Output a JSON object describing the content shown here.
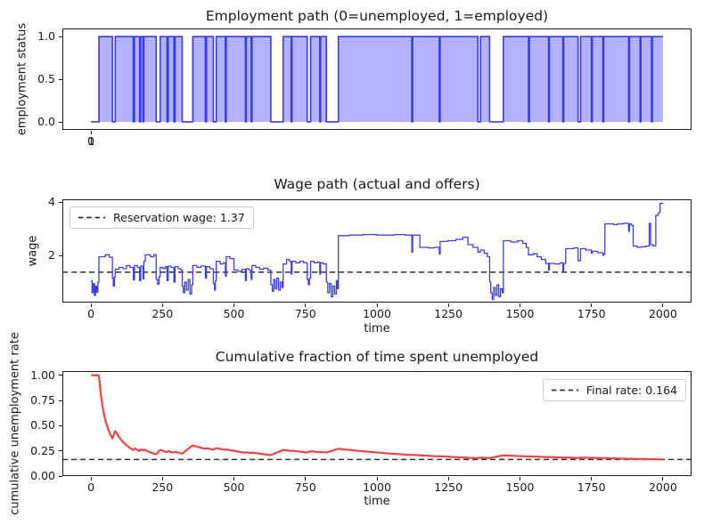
{
  "figure": {
    "background": "#ffffff",
    "text_color": "#1a1a1a",
    "spine_color": "#1a1a1a"
  },
  "chart_data": [
    {
      "id": "employment_path",
      "type": "area",
      "title": "Employment path (0=unemployed, 1=employed)",
      "ylabel": "employment status",
      "xlim": [
        -100,
        2100
      ],
      "ylim": [
        -0.094,
        1.094
      ],
      "yticks": {
        "values": [
          0.0,
          0.5,
          1.0
        ],
        "labels": [
          "0.0",
          "0.5",
          "1.0"
        ]
      },
      "xticks": {
        "values": [
          0,
          1
        ],
        "labels": [
          "0",
          "1"
        ]
      },
      "t_range": [
        0,
        2000
      ],
      "status_values": [
        0,
        1
      ],
      "line_color": "#3a3af0",
      "fill_color": "#0000ff",
      "fill_opacity": 0.3,
      "unemployed_spells": [
        [
          0,
          28
        ],
        [
          75,
          85
        ],
        [
          148,
          152
        ],
        [
          170,
          174
        ],
        [
          182,
          185
        ],
        [
          228,
          242
        ],
        [
          266,
          270
        ],
        [
          290,
          294
        ],
        [
          319,
          356
        ],
        [
          400,
          404
        ],
        [
          428,
          438
        ],
        [
          470,
          473
        ],
        [
          540,
          543
        ],
        [
          560,
          563
        ],
        [
          629,
          672
        ],
        [
          700,
          703
        ],
        [
          756,
          768
        ],
        [
          800,
          803
        ],
        [
          823,
          865
        ],
        [
          1122,
          1125
        ],
        [
          1218,
          1221
        ],
        [
          1353,
          1362
        ],
        [
          1394,
          1442
        ],
        [
          1530,
          1533
        ],
        [
          1600,
          1603
        ],
        [
          1650,
          1653
        ],
        [
          1703,
          1712
        ],
        [
          1750,
          1753
        ],
        [
          1790,
          1793
        ],
        [
          1880,
          1883
        ],
        [
          1920,
          1923
        ],
        [
          1960,
          1963
        ]
      ]
    },
    {
      "id": "wage_path",
      "type": "line",
      "title": "Wage path (actual and offers)",
      "xlabel": "time",
      "ylabel": "wage",
      "xlim": [
        -100,
        2100
      ],
      "ylim": [
        0.233,
        4.1
      ],
      "yticks": {
        "values": [
          2,
          4
        ],
        "labels": [
          "2",
          "4"
        ]
      },
      "xticks": {
        "values": [
          0,
          250,
          500,
          750,
          1000,
          1250,
          1500,
          1750,
          2000
        ],
        "labels": [
          "0",
          "250",
          "500",
          "750",
          "1000",
          "1250",
          "1500",
          "1750",
          "2000"
        ]
      },
      "reservation_wage": 1.37,
      "legend": {
        "label": "Reservation wage: 1.37",
        "position": "upper-left"
      },
      "line_color": "#3d3deb",
      "dash_color": "#333333",
      "steps": [
        [
          0,
          1.05
        ],
        [
          4,
          0.6
        ],
        [
          8,
          0.95
        ],
        [
          12,
          0.5
        ],
        [
          16,
          0.85
        ],
        [
          20,
          0.62
        ],
        [
          24,
          1.0
        ],
        [
          28,
          1.95
        ],
        [
          50,
          2.02
        ],
        [
          64,
          1.93
        ],
        [
          75,
          1.15
        ],
        [
          78,
          0.85
        ],
        [
          82,
          1.2
        ],
        [
          85,
          1.48
        ],
        [
          98,
          1.55
        ],
        [
          112,
          1.5
        ],
        [
          124,
          1.62
        ],
        [
          136,
          1.55
        ],
        [
          148,
          1.08
        ],
        [
          152,
          1.62
        ],
        [
          162,
          1.55
        ],
        [
          170,
          1.05
        ],
        [
          174,
          1.6
        ],
        [
          182,
          1.12
        ],
        [
          185,
          1.78
        ],
        [
          190,
          2.02
        ],
        [
          208,
          1.95
        ],
        [
          220,
          2.03
        ],
        [
          228,
          1.1
        ],
        [
          233,
          0.92
        ],
        [
          238,
          1.2
        ],
        [
          242,
          1.55
        ],
        [
          252,
          1.5
        ],
        [
          260,
          1.58
        ],
        [
          266,
          1.05
        ],
        [
          270,
          1.6
        ],
        [
          280,
          1.55
        ],
        [
          290,
          1.0
        ],
        [
          294,
          1.58
        ],
        [
          305,
          1.5
        ],
        [
          314,
          1.45
        ],
        [
          319,
          0.85
        ],
        [
          323,
          0.6
        ],
        [
          328,
          1.0
        ],
        [
          334,
          0.7
        ],
        [
          340,
          1.1
        ],
        [
          346,
          0.55
        ],
        [
          352,
          0.9
        ],
        [
          356,
          1.62
        ],
        [
          370,
          1.55
        ],
        [
          384,
          1.6
        ],
        [
          400,
          1.15
        ],
        [
          404,
          1.58
        ],
        [
          416,
          1.5
        ],
        [
          428,
          0.95
        ],
        [
          432,
          0.7
        ],
        [
          435,
          1.05
        ],
        [
          438,
          1.78
        ],
        [
          452,
          1.68
        ],
        [
          462,
          1.72
        ],
        [
          470,
          1.22
        ],
        [
          473,
          1.95
        ],
        [
          486,
          1.88
        ],
        [
          500,
          1.45
        ],
        [
          514,
          1.4
        ],
        [
          528,
          1.48
        ],
        [
          540,
          1.05
        ],
        [
          543,
          1.5
        ],
        [
          552,
          1.45
        ],
        [
          560,
          1.1
        ],
        [
          563,
          1.62
        ],
        [
          576,
          1.55
        ],
        [
          590,
          1.48
        ],
        [
          604,
          1.52
        ],
        [
          618,
          1.45
        ],
        [
          629,
          0.9
        ],
        [
          634,
          0.65
        ],
        [
          639,
          1.1
        ],
        [
          644,
          0.75
        ],
        [
          650,
          1.15
        ],
        [
          656,
          0.7
        ],
        [
          662,
          1.0
        ],
        [
          668,
          0.8
        ],
        [
          672,
          1.68
        ],
        [
          684,
          1.85
        ],
        [
          694,
          1.78
        ],
        [
          700,
          1.3
        ],
        [
          703,
          1.78
        ],
        [
          716,
          1.72
        ],
        [
          730,
          1.78
        ],
        [
          744,
          1.72
        ],
        [
          756,
          1.1
        ],
        [
          760,
          0.9
        ],
        [
          764,
          1.15
        ],
        [
          768,
          1.78
        ],
        [
          780,
          1.72
        ],
        [
          792,
          1.75
        ],
        [
          800,
          1.3
        ],
        [
          803,
          1.72
        ],
        [
          812,
          1.68
        ],
        [
          823,
          1.0
        ],
        [
          828,
          0.6
        ],
        [
          834,
          0.95
        ],
        [
          840,
          0.45
        ],
        [
          846,
          0.85
        ],
        [
          852,
          0.55
        ],
        [
          858,
          1.05
        ],
        [
          862,
          0.75
        ],
        [
          865,
          2.74
        ],
        [
          905,
          2.76
        ],
        [
          950,
          2.78
        ],
        [
          1000,
          2.76
        ],
        [
          1060,
          2.78
        ],
        [
          1100,
          2.76
        ],
        [
          1122,
          2.12
        ],
        [
          1125,
          2.76
        ],
        [
          1150,
          2.3
        ],
        [
          1180,
          2.28
        ],
        [
          1200,
          2.3
        ],
        [
          1218,
          2.05
        ],
        [
          1221,
          2.52
        ],
        [
          1248,
          2.55
        ],
        [
          1276,
          2.6
        ],
        [
          1300,
          2.68
        ],
        [
          1318,
          2.4
        ],
        [
          1336,
          2.3
        ],
        [
          1353,
          2.12
        ],
        [
          1362,
          2.2
        ],
        [
          1375,
          2.08
        ],
        [
          1386,
          1.95
        ],
        [
          1394,
          1.0
        ],
        [
          1398,
          0.6
        ],
        [
          1403,
          0.35
        ],
        [
          1408,
          0.8
        ],
        [
          1414,
          0.5
        ],
        [
          1420,
          0.9
        ],
        [
          1426,
          0.45
        ],
        [
          1432,
          0.75
        ],
        [
          1438,
          0.6
        ],
        [
          1442,
          2.55
        ],
        [
          1468,
          2.5
        ],
        [
          1492,
          2.55
        ],
        [
          1510,
          2.45
        ],
        [
          1522,
          2.3
        ],
        [
          1530,
          2.02
        ],
        [
          1546,
          2.06
        ],
        [
          1560,
          1.95
        ],
        [
          1575,
          1.85
        ],
        [
          1590,
          1.7
        ],
        [
          1600,
          1.45
        ],
        [
          1603,
          1.7
        ],
        [
          1622,
          1.68
        ],
        [
          1640,
          1.72
        ],
        [
          1650,
          1.42
        ],
        [
          1653,
          1.7
        ],
        [
          1660,
          2.25
        ],
        [
          1688,
          2.28
        ],
        [
          1703,
          1.8
        ],
        [
          1712,
          2.25
        ],
        [
          1730,
          2.2
        ],
        [
          1750,
          2.08
        ],
        [
          1753,
          2.15
        ],
        [
          1772,
          2.1
        ],
        [
          1790,
          2.0
        ],
        [
          1793,
          2.05
        ],
        [
          1797,
          3.18
        ],
        [
          1828,
          3.15
        ],
        [
          1840,
          3.18
        ],
        [
          1862,
          3.2
        ],
        [
          1880,
          2.9
        ],
        [
          1883,
          3.18
        ],
        [
          1890,
          3.12
        ],
        [
          1896,
          2.35
        ],
        [
          1910,
          2.3
        ],
        [
          1922,
          2.32
        ],
        [
          1940,
          2.35
        ],
        [
          1952,
          3.2
        ],
        [
          1957,
          2.4
        ],
        [
          1966,
          2.35
        ],
        [
          1975,
          3.5
        ],
        [
          1984,
          3.6
        ],
        [
          1990,
          3.95
        ],
        [
          2000,
          3.97
        ]
      ]
    },
    {
      "id": "cumulative_unemployment",
      "type": "line",
      "title": "Cumulative fraction of time spent unemployed",
      "xlabel": "time",
      "ylabel": "cumulative unemployment rate",
      "xlim": [
        -100,
        2100
      ],
      "ylim": [
        0,
        1.042
      ],
      "yticks": {
        "values": [
          0,
          0.25,
          0.5,
          0.75,
          1.0
        ],
        "labels": [
          "0.00",
          "0.25",
          "0.50",
          "0.75",
          "1.00"
        ]
      },
      "xticks": {
        "values": [
          0,
          250,
          500,
          750,
          1000,
          1250,
          1500,
          1750,
          2000
        ],
        "labels": [
          "0",
          "250",
          "500",
          "750",
          "1000",
          "1250",
          "1500",
          "1750",
          "2000"
        ]
      },
      "final_rate": 0.164,
      "legend": {
        "label": "Final rate: 0.164",
        "position": "upper-right"
      },
      "line_color": "#f04343",
      "dash_color": "#333333",
      "derived": "running fraction of time unemployed computed from employment_path.unemployed_spells"
    }
  ]
}
